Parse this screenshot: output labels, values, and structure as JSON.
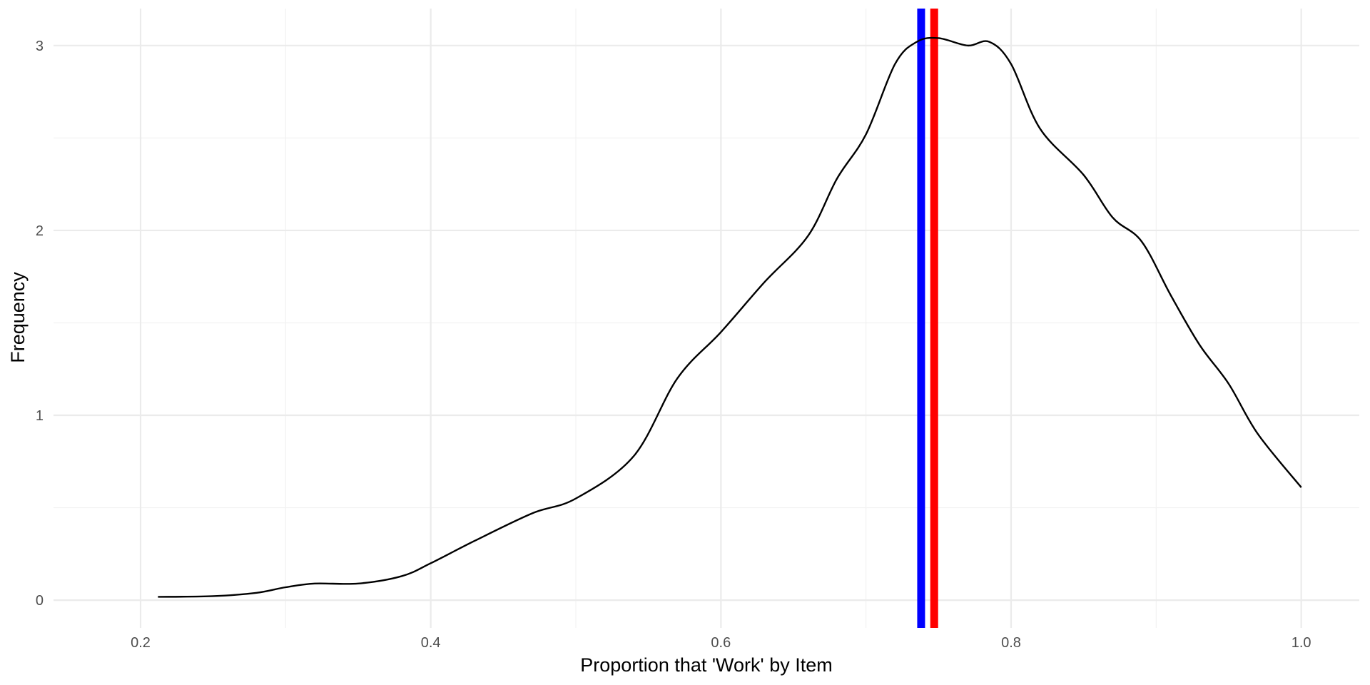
{
  "chart_data": {
    "type": "line",
    "title": "",
    "xlabel": "Proportion that 'Work' by Item",
    "ylabel": "Frequency",
    "xlim": [
      0.14,
      1.04
    ],
    "ylim": [
      -0.15,
      3.2
    ],
    "x_ticks": [
      0.2,
      0.4,
      0.6,
      0.8,
      1.0
    ],
    "x_tick_labels": [
      "0.2",
      "0.4",
      "0.6",
      "0.8",
      "1.0"
    ],
    "y_ticks": [
      0,
      1,
      2,
      3
    ],
    "y_tick_labels": [
      "0",
      "1",
      "2",
      "3"
    ],
    "grid": true,
    "legend": "none",
    "series": [
      {
        "color": "#000000",
        "x": [
          0.212,
          0.25,
          0.28,
          0.3,
          0.32,
          0.35,
          0.38,
          0.4,
          0.43,
          0.47,
          0.5,
          0.54,
          0.57,
          0.6,
          0.63,
          0.66,
          0.68,
          0.7,
          0.72,
          0.735,
          0.75,
          0.77,
          0.785,
          0.8,
          0.82,
          0.85,
          0.87,
          0.89,
          0.91,
          0.93,
          0.95,
          0.97,
          1.0
        ],
        "y": [
          0.018,
          0.022,
          0.04,
          0.07,
          0.09,
          0.09,
          0.13,
          0.2,
          0.32,
          0.47,
          0.55,
          0.78,
          1.2,
          1.45,
          1.72,
          1.97,
          2.28,
          2.52,
          2.9,
          3.02,
          3.04,
          3.0,
          3.02,
          2.9,
          2.55,
          2.3,
          2.07,
          1.94,
          1.65,
          1.38,
          1.17,
          0.9,
          0.61
        ]
      }
    ],
    "vlines": [
      {
        "x": 0.738,
        "color": "#0000ff"
      },
      {
        "x": 0.747,
        "color": "#ff0000"
      }
    ]
  }
}
